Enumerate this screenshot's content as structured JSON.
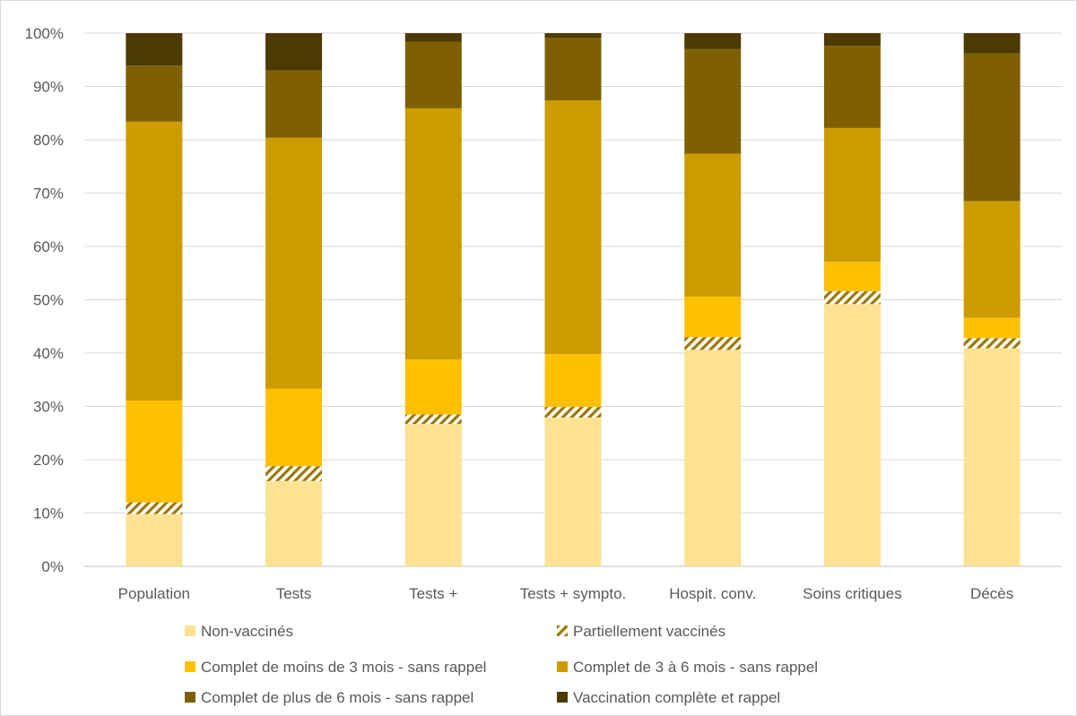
{
  "chart_data": {
    "type": "bar",
    "stacked": true,
    "normalized": true,
    "categories": [
      "Population",
      "Tests",
      "Tests +",
      "Tests + sympto.",
      "Hospit. conv.",
      "Soins critiques",
      "Décès"
    ],
    "series": [
      {
        "name": "Non-vaccinés",
        "color": "#FDE293",
        "pattern": "solid",
        "values": [
          9.8,
          16.0,
          26.7,
          27.9,
          40.6,
          49.2,
          40.9
        ]
      },
      {
        "name": "Partiellement vaccinés",
        "color": "#9C7700",
        "pattern": "hatched",
        "values": [
          2.2,
          2.8,
          1.8,
          2.0,
          2.4,
          2.4,
          1.9
        ]
      },
      {
        "name": "Complet de moins de 3 mois - sans rappel",
        "color": "#FFC000",
        "pattern": "solid",
        "values": [
          19.1,
          14.5,
          10.3,
          9.9,
          7.6,
          5.5,
          3.8
        ]
      },
      {
        "name": "Complet de 3 à 6 mois - sans rappel",
        "color": "#CC9C00",
        "pattern": "solid",
        "values": [
          52.3,
          47.1,
          47.1,
          47.6,
          26.8,
          25.1,
          21.9
        ]
      },
      {
        "name": "Complet de plus de 6 mois - sans rappel",
        "color": "#7F6000",
        "pattern": "solid",
        "values": [
          10.5,
          12.6,
          12.5,
          11.7,
          19.6,
          15.4,
          27.7
        ]
      },
      {
        "name": "Vaccination complète et rappel",
        "color": "#4D3A00",
        "pattern": "solid",
        "values": [
          6.1,
          7.0,
          1.6,
          0.9,
          3.0,
          2.4,
          3.8
        ]
      }
    ],
    "y_ticks": [
      "0%",
      "10%",
      "20%",
      "30%",
      "40%",
      "50%",
      "60%",
      "70%",
      "80%",
      "90%",
      "100%"
    ],
    "ylim": [
      0,
      100
    ],
    "grid": true,
    "legend_position": "bottom"
  }
}
